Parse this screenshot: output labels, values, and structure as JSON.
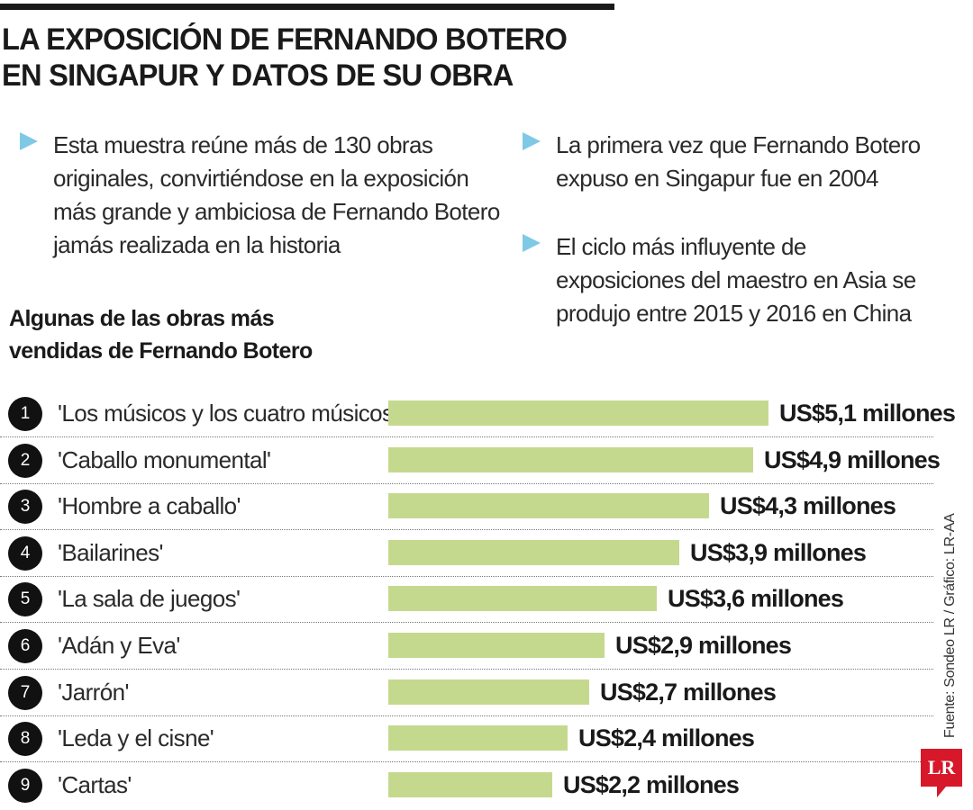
{
  "headline": {
    "line1": "LA EXPOSICIÓN DE FERNANDO BOTERO",
    "line2": "EN SINGAPUR Y DATOS DE SU OBRA"
  },
  "notes": {
    "left": "Esta muestra reúne más de 130 obras originales, convirtiéndose en la exposición más grande y ambiciosa de Fernando Botero jamás realizada en la historia",
    "right_1": "La primera vez que Fernando Botero expuso en Singapur fue en 2004",
    "right_2": "El ciclo más influyente de exposiciones del maestro en Asia se produjo entre 2015 y 2016 en China"
  },
  "source": "Fuente: Sondeo LR / Gráfico: LR-AA",
  "logo_text": "LR",
  "colors": {
    "bar": "#c5d98e",
    "accent": "#7fc9e6",
    "logo": "#d7182a"
  },
  "chart_data": {
    "type": "bar",
    "orientation": "horizontal",
    "title": "Algunas de las obras más vendidas de Fernando Botero",
    "unit": "millones de US$",
    "xlim": [
      0,
      5.1
    ],
    "ranks": [
      "1",
      "2",
      "3",
      "4",
      "5",
      "6",
      "7",
      "8",
      "9"
    ],
    "categories": [
      "'Los músicos y los cuatro músicos'",
      "'Caballo monumental'",
      "'Hombre a caballo'",
      "'Bailarines'",
      "'La sala de juegos'",
      "'Adán y Eva'",
      "'Jarrón'",
      "'Leda y el cisne'",
      "'Cartas'"
    ],
    "values": [
      5.1,
      4.9,
      4.3,
      3.9,
      3.6,
      2.9,
      2.7,
      2.4,
      2.2
    ],
    "labels": [
      "US$5,1 millones",
      "US$4,9 millones",
      "US$4,3 millones",
      "US$3,9 millones",
      "US$3,6 millones",
      "US$2,9 millones",
      "US$2,7 millones",
      "US$2,4 millones",
      "US$2,2 millones"
    ]
  }
}
